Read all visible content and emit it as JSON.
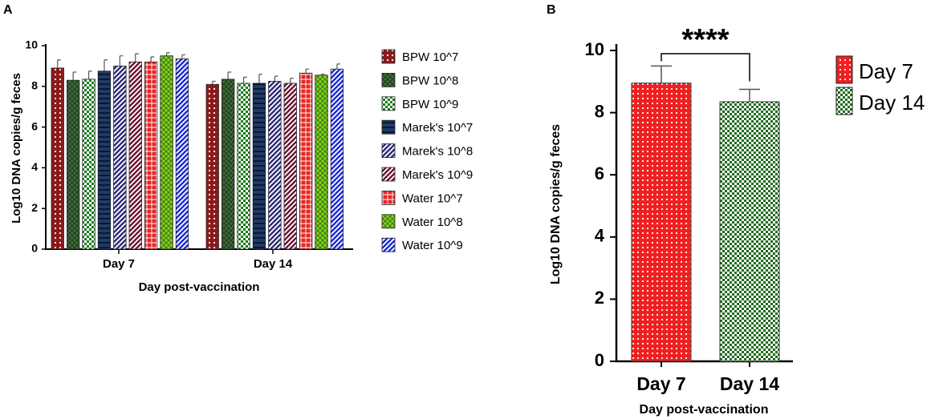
{
  "chart_data": [
    {
      "panel": "A",
      "type": "bar",
      "xlabel": "Day post-vaccination",
      "ylabel": "Log10 DNA copies/g feces",
      "ylim": [
        0,
        10
      ],
      "yticks": [
        "0",
        "2",
        "4",
        "6",
        "8",
        "10"
      ],
      "categories": [
        "Day 7",
        "Day 14"
      ],
      "legend_position": "right",
      "series": [
        {
          "name": "BPW 10^7",
          "values": [
            8.9,
            8.1
          ],
          "errors": [
            0.4,
            0.15
          ],
          "color": "#8B1A1A",
          "pattern": "dots"
        },
        {
          "name": "BPW 10^8",
          "values": [
            8.3,
            8.35
          ],
          "errors": [
            0.4,
            0.35
          ],
          "color": "#3E6B3A",
          "pattern": "crosshatch"
        },
        {
          "name": "BPW 10^9",
          "values": [
            8.35,
            8.15
          ],
          "errors": [
            0.4,
            0.3
          ],
          "color": "#1E7A1E",
          "pattern": "checker"
        },
        {
          "name": "Marek's 10^7",
          "values": [
            8.75,
            8.15
          ],
          "errors": [
            0.55,
            0.45
          ],
          "color": "#1F3A6B",
          "pattern": "hlines"
        },
        {
          "name": "Marek's 10^8",
          "values": [
            9.0,
            8.25
          ],
          "errors": [
            0.5,
            0.25
          ],
          "color": "#2E2A7A",
          "pattern": "diag"
        },
        {
          "name": "Marek's 10^9",
          "values": [
            9.2,
            8.15
          ],
          "errors": [
            0.4,
            0.25
          ],
          "color": "#6B1530",
          "pattern": "diag"
        },
        {
          "name": "Water 10^7",
          "values": [
            9.2,
            8.65
          ],
          "errors": [
            0.25,
            0.2
          ],
          "color": "#E82424",
          "pattern": "grid"
        },
        {
          "name": "Water 10^8",
          "values": [
            9.5,
            8.55
          ],
          "errors": [
            0.15,
            0.05
          ],
          "color": "#7ED321",
          "pattern": "crosshatch"
        },
        {
          "name": "Water 10^9",
          "values": [
            9.35,
            8.85
          ],
          "errors": [
            0.2,
            0.25
          ],
          "color": "#1A2BD6",
          "pattern": "diag"
        }
      ]
    },
    {
      "panel": "B",
      "type": "bar",
      "xlabel": "Day post-vaccination",
      "ylabel": "Log10 DNA copies/g feces",
      "ylim": [
        0,
        10
      ],
      "yticks": [
        "0",
        "2",
        "4",
        "6",
        "8",
        "10"
      ],
      "categories": [
        "Day 7",
        "Day 14"
      ],
      "values": [
        8.95,
        8.35
      ],
      "errors": [
        0.55,
        0.4
      ],
      "colors": [
        "#F02020",
        "#1F6B1F"
      ],
      "patterns": [
        "dots",
        "checker"
      ],
      "legend": [
        "Day 7",
        "Day 14"
      ],
      "legend_position": "right",
      "annotation": "****"
    }
  ]
}
